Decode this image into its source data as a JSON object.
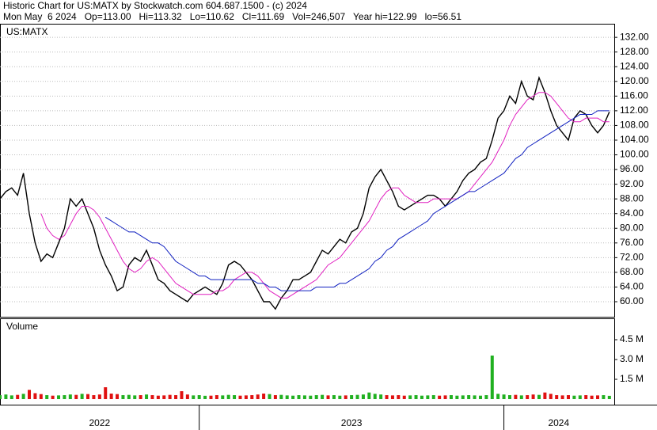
{
  "header": {
    "title": "Historic Chart for US:MATX by Stockwatch.com 604.687.1500 - (c) 2024",
    "quote": "Mon May  6 2024   Op=113.00   Hi=113.32   Lo=110.62   Cl=111.69   Vol=246,507   Year hi=122.99   lo=56.51"
  },
  "chart_data": [
    {
      "type": "line",
      "title": "US:MATX",
      "xlim": [
        0,
        104.7
      ],
      "ylim": [
        55.9,
        135.7
      ],
      "grid": true,
      "yticks": [
        {
          "value": 60,
          "label": "60.00"
        },
        {
          "value": 64,
          "label": "64.00"
        },
        {
          "value": 68,
          "label": "68.00"
        },
        {
          "value": 72,
          "label": "72.00"
        },
        {
          "value": 76,
          "label": "76.00"
        },
        {
          "value": 80,
          "label": "80.00"
        },
        {
          "value": 84,
          "label": "84.00"
        },
        {
          "value": 88,
          "label": "88.00"
        },
        {
          "value": 92,
          "label": "92.00"
        },
        {
          "value": 96,
          "label": "96.00"
        },
        {
          "value": 100,
          "label": "100.00"
        },
        {
          "value": 104,
          "label": "104.00"
        },
        {
          "value": 108,
          "label": "108.00"
        },
        {
          "value": 112,
          "label": "112.00"
        },
        {
          "value": 116,
          "label": "116.00"
        },
        {
          "value": 120,
          "label": "120.00"
        },
        {
          "value": 124,
          "label": "124.00"
        },
        {
          "value": 128,
          "label": "128.00"
        },
        {
          "value": 132,
          "label": "132.00"
        }
      ],
      "series": [
        {
          "color": "#000000",
          "values": [
            88,
            90,
            91,
            89,
            95,
            84,
            76,
            71,
            73,
            72,
            76,
            80,
            88,
            86,
            88,
            84,
            80,
            74,
            70,
            67,
            63,
            64,
            70,
            72,
            71,
            74,
            70,
            66,
            65,
            63,
            62,
            61,
            60,
            62,
            63,
            64,
            63,
            62,
            65,
            70,
            71,
            70,
            68,
            66,
            63,
            60,
            60,
            58,
            61,
            63,
            66,
            66,
            67,
            68,
            71,
            74,
            73,
            75,
            77,
            76,
            79,
            80,
            84,
            91,
            94,
            96,
            93,
            90,
            86,
            85,
            86,
            87,
            88,
            89,
            89,
            88,
            86,
            88,
            90,
            93,
            95,
            96,
            98,
            99,
            104,
            110,
            112,
            116,
            114,
            120,
            116,
            115,
            121,
            117,
            112,
            108,
            106,
            104,
            110,
            112,
            111,
            108,
            106,
            108,
            111.69
          ]
        },
        {
          "color": "#e020c0",
          "values": [
            null,
            null,
            null,
            null,
            null,
            null,
            null,
            84,
            80,
            78,
            77,
            78,
            81,
            84,
            86,
            86,
            85,
            83,
            80,
            77,
            74,
            71,
            69,
            68,
            69,
            71,
            72,
            71,
            69,
            67,
            65,
            64,
            63,
            62,
            62,
            62,
            62,
            63,
            63,
            64,
            66,
            67,
            68,
            68,
            67,
            65,
            63,
            62,
            61,
            61,
            62,
            63,
            64,
            65,
            66,
            68,
            70,
            71,
            72,
            74,
            76,
            78,
            80,
            82,
            85,
            88,
            90,
            91,
            91,
            89,
            88,
            87,
            87,
            87,
            88,
            88,
            88,
            88,
            88,
            89,
            90,
            92,
            94,
            96,
            98,
            101,
            104,
            108,
            111,
            113,
            115,
            116,
            117,
            117,
            116,
            114,
            112,
            110,
            109,
            109,
            110,
            110,
            110,
            109,
            109
          ]
        },
        {
          "color": "#1020c0",
          "values": [
            null,
            null,
            null,
            null,
            null,
            null,
            null,
            null,
            null,
            null,
            null,
            null,
            null,
            null,
            null,
            null,
            null,
            null,
            83,
            82,
            81,
            80,
            79,
            79,
            78,
            77,
            76,
            76,
            75,
            73,
            71,
            70,
            69,
            68,
            67,
            67,
            66,
            66,
            66,
            66,
            66,
            66,
            66,
            66,
            65,
            65,
            64,
            64,
            63,
            63,
            63,
            63,
            63,
            63,
            64,
            64,
            64,
            64,
            65,
            65,
            66,
            67,
            68,
            69,
            71,
            72,
            74,
            75,
            77,
            78,
            79,
            80,
            81,
            82,
            84,
            85,
            86,
            87,
            88,
            89,
            90,
            90,
            91,
            92,
            93,
            94,
            95,
            97,
            99,
            100,
            102,
            103,
            104,
            105,
            106,
            107,
            108,
            109,
            110,
            111,
            111,
            111,
            112,
            112,
            112
          ]
        }
      ]
    },
    {
      "type": "bar",
      "title": "Volume",
      "xlim": [
        0,
        104.7
      ],
      "ylim": [
        -420000,
        6120000
      ],
      "yticks": [
        {
          "value": 1500000,
          "label": "1.5 M"
        },
        {
          "value": 3000000,
          "label": "3.0 M"
        },
        {
          "value": 4500000,
          "label": "4.5 M"
        }
      ],
      "xticks": [
        {
          "value": -18,
          "label": "2022"
        },
        {
          "value": 34,
          "label": "2023"
        },
        {
          "value": 86,
          "label": "2024"
        }
      ],
      "up_color": "#20b020",
      "down_color": "#e01010",
      "values": [
        300000,
        350000,
        280000,
        320000,
        400000,
        700000,
        450000,
        380000,
        300000,
        260000,
        280000,
        300000,
        350000,
        320000,
        400000,
        380000,
        300000,
        350000,
        900000,
        420000,
        380000,
        300000,
        320000,
        280000,
        300000,
        350000,
        300000,
        260000,
        280000,
        320000,
        300000,
        600000,
        350000,
        280000,
        300000,
        250000,
        260000,
        300000,
        280000,
        320000,
        300000,
        260000,
        280000,
        300000,
        350000,
        420000,
        380000,
        300000,
        320000,
        280000,
        260000,
        300000,
        280000,
        260000,
        300000,
        320000,
        280000,
        300000,
        260000,
        280000,
        300000,
        320000,
        350000,
        500000,
        400000,
        350000,
        300000,
        280000,
        300000,
        260000,
        280000,
        300000,
        260000,
        280000,
        300000,
        260000,
        280000,
        300000,
        260000,
        280000,
        300000,
        280000,
        260000,
        300000,
        3300000,
        400000,
        350000,
        300000,
        320000,
        280000,
        300000,
        350000,
        320000,
        500000,
        400000,
        300000,
        280000,
        300000,
        260000,
        280000,
        300000,
        260000,
        280000,
        300000,
        246507
      ]
    }
  ]
}
